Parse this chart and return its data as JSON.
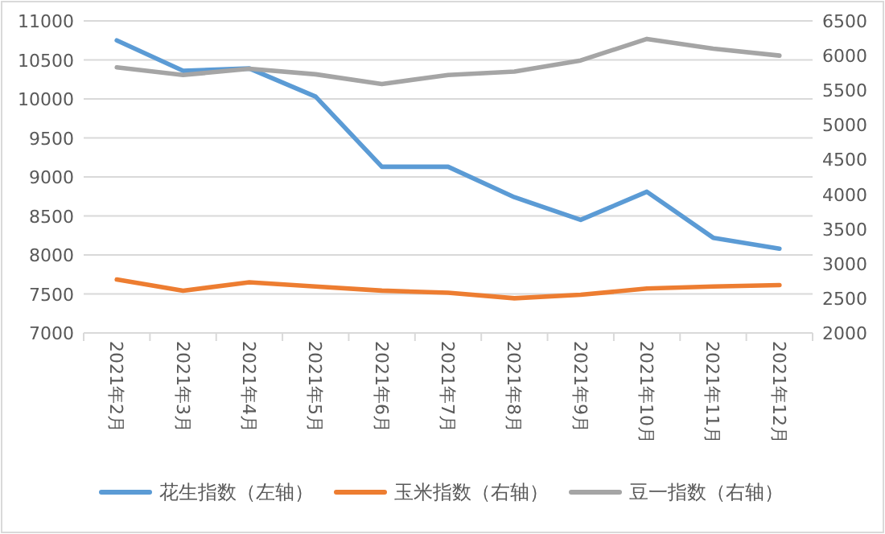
{
  "chart_data": {
    "type": "line",
    "categories": [
      "2021年2月",
      "2021年3月",
      "2021年4月",
      "2021年5月",
      "2021年6月",
      "2021年7月",
      "2021年8月",
      "2021年9月",
      "2021年10月",
      "2021年11月",
      "2021年12月"
    ],
    "series": [
      {
        "name": "花生指数（左轴）",
        "color": "#5b9bd5",
        "values": [
          10750,
          10360,
          10390,
          10030,
          9130,
          9130,
          8740,
          8450,
          8810,
          8220,
          8080
        ]
      },
      {
        "name": "玉米指数（右轴）",
        "color": "#ed7d31",
        "axis": "y2",
        "values": [
          2770,
          2610,
          2730,
          2670,
          2610,
          2580,
          2500,
          2550,
          2640,
          2670,
          2690
        ]
      },
      {
        "name": "豆一指数（右轴）",
        "color": "#a5a5a5",
        "axis": "y2",
        "values": [
          5830,
          5720,
          5810,
          5730,
          5590,
          5720,
          5770,
          5930,
          6240,
          6100,
          6000
        ]
      }
    ],
    "ylim": [
      7000,
      11000
    ],
    "yticks": [
      7000,
      7500,
      8000,
      8500,
      9000,
      9500,
      10000,
      10500,
      11000
    ],
    "y2lim": [
      2000,
      6500
    ],
    "y2ticks": [
      2000,
      2500,
      3000,
      3500,
      4000,
      4500,
      5000,
      5500,
      6000,
      6500
    ],
    "grid": "y",
    "legend": "bottom",
    "marker": "none",
    "line_style": "solid"
  }
}
